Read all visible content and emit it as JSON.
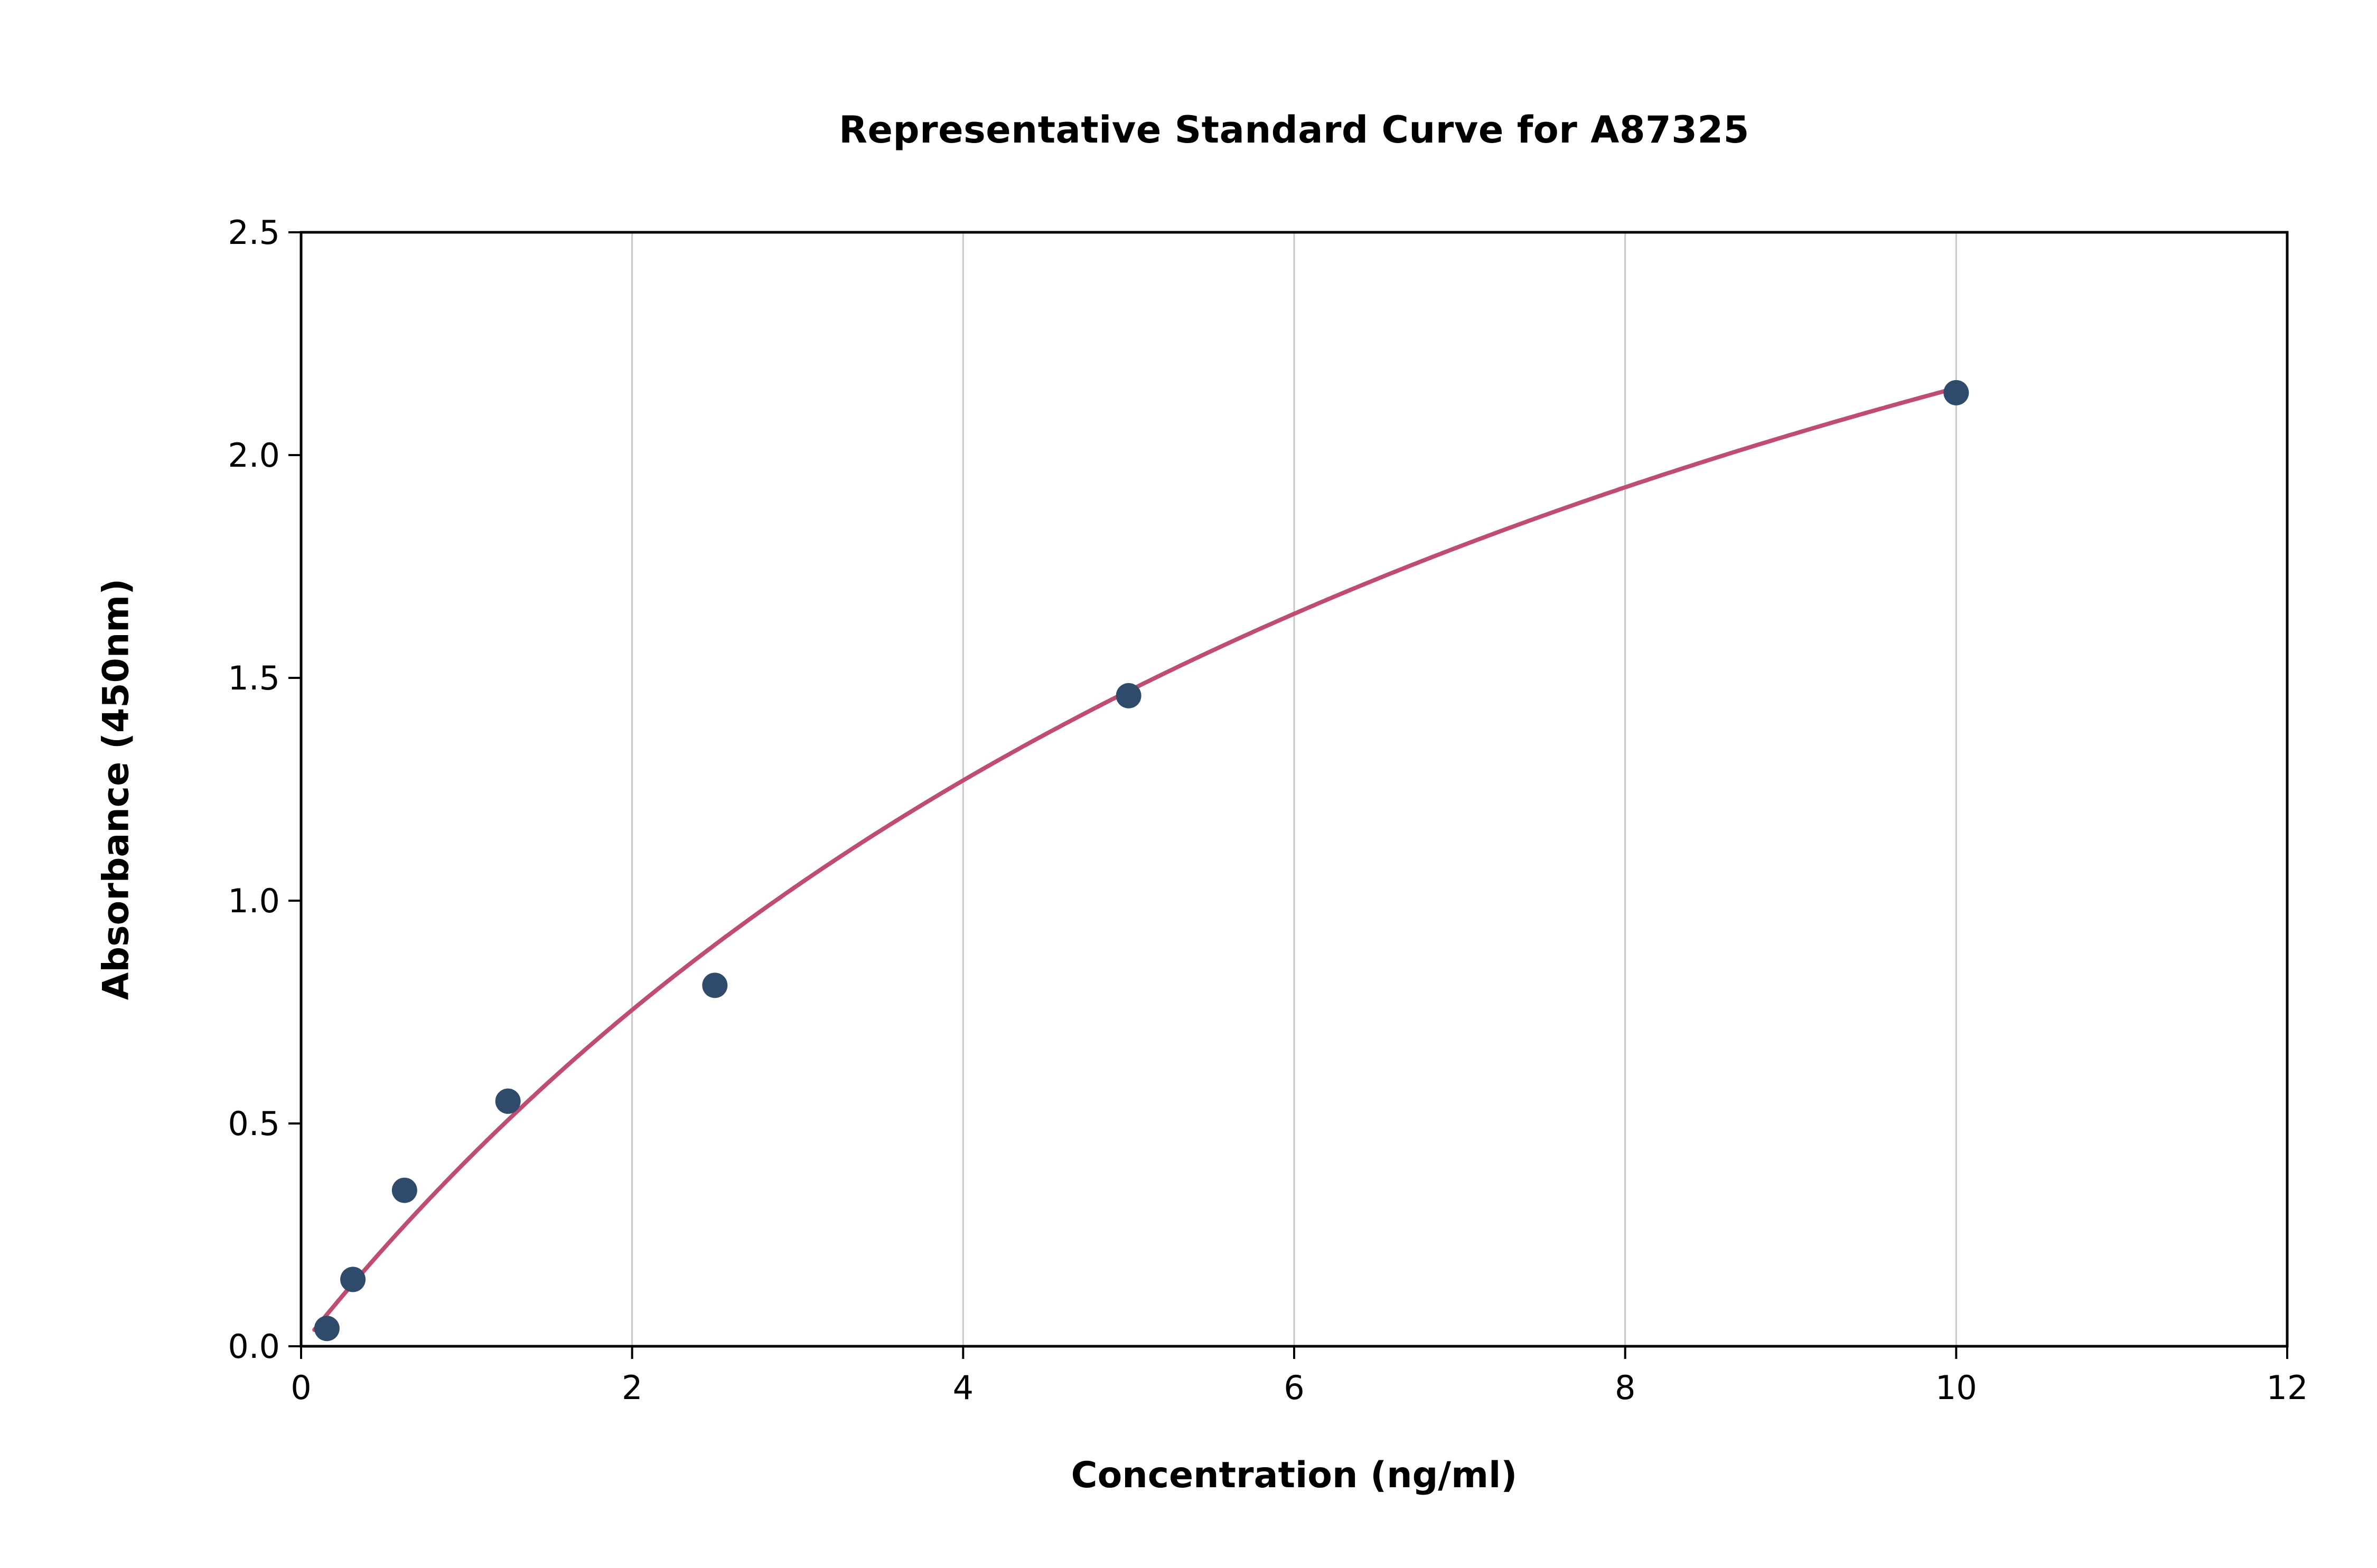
{
  "chart_data": {
    "type": "scatter",
    "title": "Representative Standard Curve for A87325",
    "xlabel": "Concentration (ng/ml)",
    "ylabel": "Absorbance (450nm)",
    "xlim": [
      0,
      12
    ],
    "ylim": [
      0,
      2.5
    ],
    "xticks": [
      0,
      2,
      4,
      6,
      8,
      10,
      12
    ],
    "xticklabels": [
      "0",
      "2",
      "4",
      "6",
      "8",
      "10",
      "12"
    ],
    "yticks": [
      0,
      0.5,
      1.0,
      1.5,
      2.0,
      2.5
    ],
    "yticklabels": [
      "0.0",
      "0.5",
      "1.0",
      "1.5",
      "2.0",
      "2.5"
    ],
    "grid": "vertical-only",
    "legend": "none",
    "points": [
      {
        "x": 0.156,
        "y": 0.04
      },
      {
        "x": 0.313,
        "y": 0.15
      },
      {
        "x": 0.625,
        "y": 0.35
      },
      {
        "x": 1.25,
        "y": 0.55
      },
      {
        "x": 2.5,
        "y": 0.81
      },
      {
        "x": 5.0,
        "y": 1.46
      },
      {
        "x": 10.0,
        "y": 2.14
      }
    ],
    "fit_curve": {
      "model": "4PL",
      "a": 0.0,
      "b": 1.0,
      "c": 8.6,
      "d": 4.0,
      "x_start": 0.08,
      "x_end": 10.0
    },
    "colors": {
      "points": "#2f4b6b",
      "curve": "#bf4d72",
      "grid": "#c8c8c8",
      "axis": "#000000",
      "text": "#000000",
      "background": "#ffffff"
    }
  }
}
